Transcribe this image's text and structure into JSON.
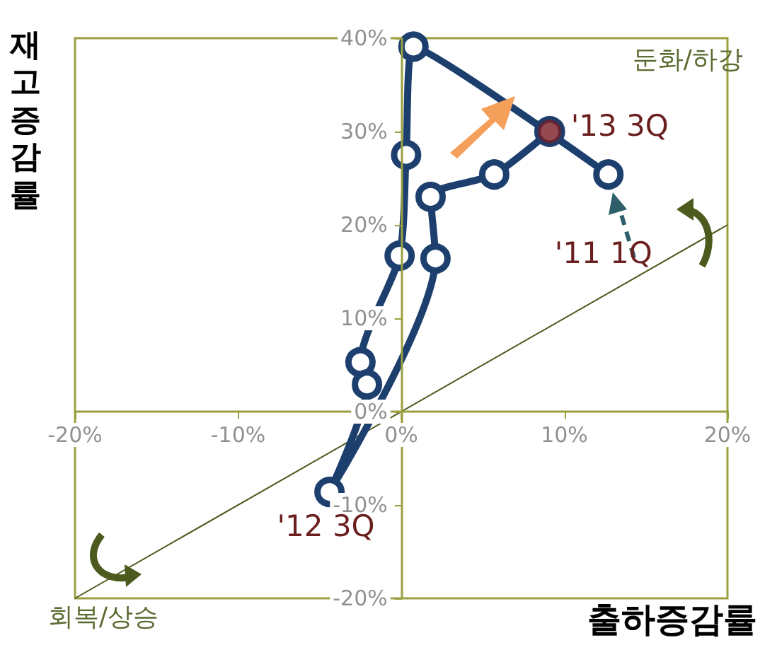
{
  "chart_data": {
    "type": "line",
    "xlabel": "출하증감률",
    "ylabel": "재고증감률",
    "marker": "circle",
    "xlim": [
      -20,
      20
    ],
    "ylim": [
      -20,
      40
    ],
    "xticks": [
      {
        "value": -20,
        "label": "-20%"
      },
      {
        "value": -10,
        "label": "-10%"
      },
      {
        "value": 0,
        "label": "0%"
      },
      {
        "value": 10,
        "label": "10%"
      },
      {
        "value": 20,
        "label": "20%"
      }
    ],
    "yticks": [
      {
        "value": -20,
        "label": "-20%"
      },
      {
        "value": -10,
        "label": "-10%"
      },
      {
        "value": 0,
        "label": "0%"
      },
      {
        "value": 10,
        "label": "10%"
      },
      {
        "value": 20,
        "label": "20%"
      },
      {
        "value": 30,
        "label": "30%"
      },
      {
        "value": 40,
        "label": "40%"
      }
    ],
    "series": [
      {
        "type": "line",
        "color": "#4d5a1e",
        "x": [
          -20,
          20
        ],
        "values": [
          -20,
          20
        ],
        "marker": "none"
      },
      {
        "color": "#1c3f6e",
        "x": [
          12.7,
          0.75,
          0.3,
          -0.1,
          -2.5,
          -2.1,
          -4.4,
          2.1,
          1.8,
          5.7,
          9.1
        ],
        "values": [
          25.4,
          39.1,
          27.5,
          16.7,
          5.3,
          2.9,
          -8.6,
          16.4,
          23.0,
          25.4,
          30.0
        ]
      },
      {
        "type": "scatter",
        "color": "#7a1c24",
        "x": [
          9.1
        ],
        "values": [
          30.0
        ]
      }
    ],
    "annotations": [
      {
        "text": "'13 3Q",
        "x": 9.1,
        "y": 30.0
      },
      {
        "text": "'11 1Q",
        "x": 12.7,
        "y": 25.4
      },
      {
        "text": "'12 3Q",
        "x": -4.4,
        "y": -8.6
      },
      "둔화/하강",
      "회복/상승"
    ]
  }
}
